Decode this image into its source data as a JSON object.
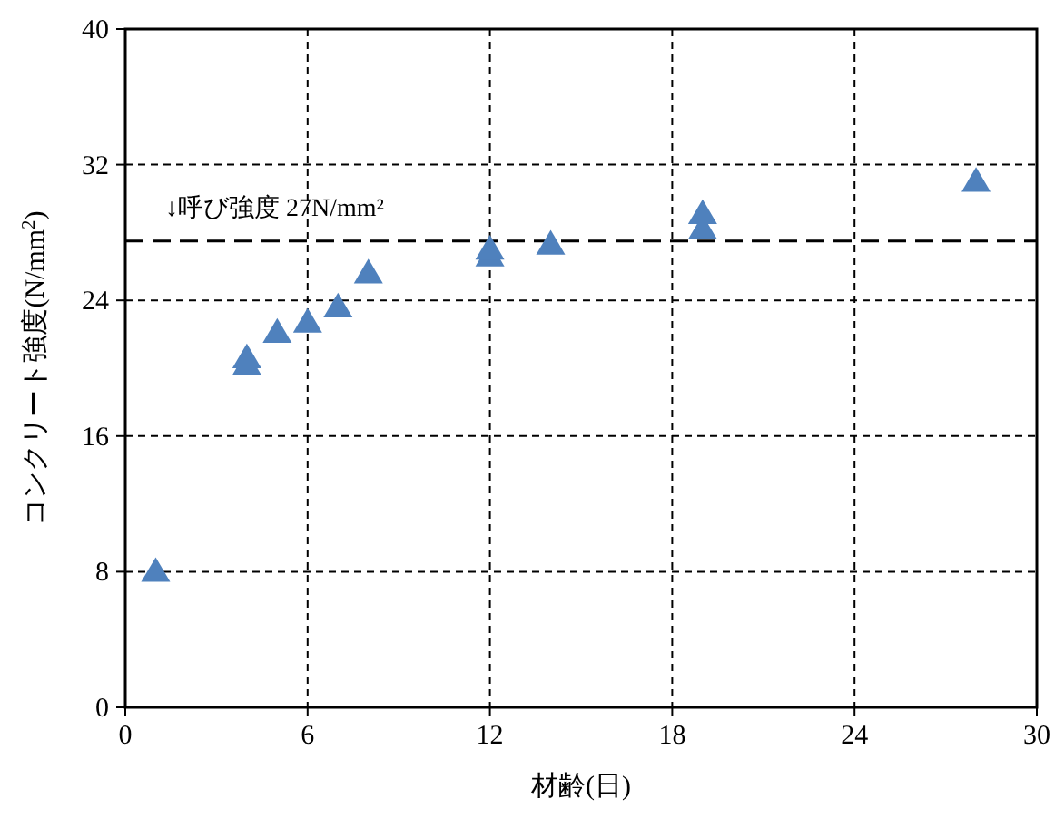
{
  "chart_data": {
    "type": "scatter",
    "xlabel": "材齢(日)",
    "ylabel": "コンクリート強度(N/mm$^{2}$)",
    "x": [
      1,
      4,
      4,
      5,
      6,
      7,
      8,
      12,
      12,
      14,
      19,
      19,
      28
    ],
    "values": [
      8.0,
      20.2,
      20.6,
      22.1,
      22.7,
      23.6,
      25.6,
      26.6,
      27.0,
      27.3,
      28.2,
      29.1,
      31.0
    ],
    "color": "#4f81bd",
    "marker": "triangle",
    "xlim": [
      0,
      30
    ],
    "xticks": [
      0,
      6,
      12,
      18,
      24,
      30
    ],
    "ylim": [
      0,
      40
    ],
    "yticks": [
      0,
      8,
      16,
      24,
      32,
      40
    ],
    "grid": true,
    "ref_lines": [
      {
        "axis": "y",
        "value": 27.5,
        "label": "↓呼び強度 27N/mm²",
        "color": "#000000",
        "line_style": "dashed"
      }
    ]
  }
}
